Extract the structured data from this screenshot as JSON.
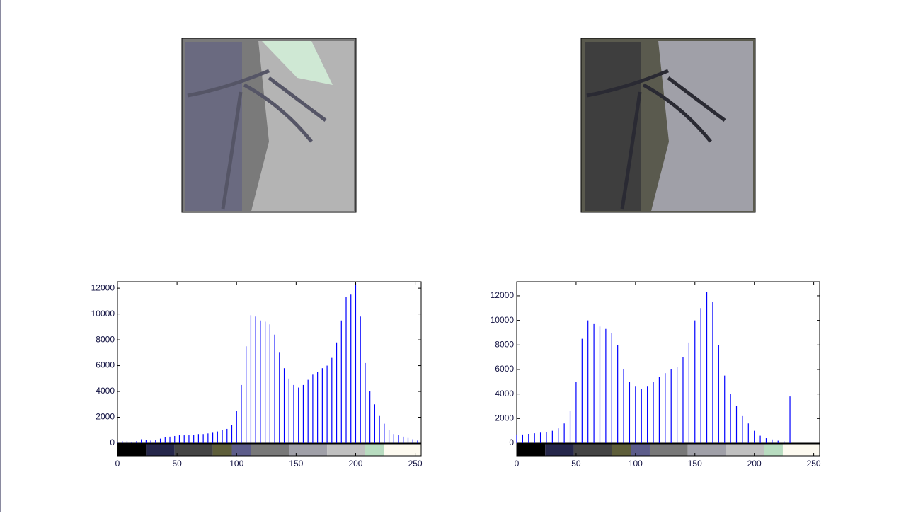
{
  "chart_data": [
    {
      "type": "histogram",
      "color": "#0000ff",
      "x": [
        0,
        4,
        8,
        12,
        16,
        20,
        24,
        28,
        32,
        36,
        40,
        44,
        48,
        52,
        56,
        60,
        64,
        68,
        72,
        76,
        80,
        84,
        88,
        92,
        96,
        100,
        104,
        108,
        112,
        116,
        120,
        124,
        128,
        132,
        136,
        140,
        144,
        148,
        152,
        156,
        160,
        164,
        168,
        172,
        176,
        180,
        184,
        188,
        192,
        196,
        200,
        204,
        208,
        212,
        216,
        220,
        224,
        228,
        232,
        236,
        240,
        244,
        248,
        252
      ],
      "values": [
        100,
        150,
        150,
        100,
        150,
        300,
        250,
        200,
        250,
        350,
        450,
        500,
        550,
        600,
        600,
        600,
        650,
        700,
        700,
        750,
        800,
        900,
        1000,
        1100,
        1400,
        2500,
        4500,
        7500,
        9900,
        9800,
        9500,
        9400,
        9200,
        8400,
        7000,
        5800,
        5000,
        4500,
        4300,
        4500,
        4900,
        5300,
        5500,
        5800,
        6000,
        6600,
        7800,
        9500,
        11300,
        11500,
        12400,
        9800,
        6200,
        4000,
        3000,
        2100,
        1500,
        1000,
        700,
        600,
        500,
        400,
        300,
        200
      ],
      "xlim": [
        0,
        255
      ],
      "ylim": [
        0,
        12500
      ],
      "xticks": [
        0,
        50,
        100,
        150,
        200,
        250
      ],
      "yticks": [
        0,
        2000,
        4000,
        6000,
        8000,
        10000,
        12000
      ],
      "colormap": {
        "edges": [
          0,
          24,
          48,
          80,
          96,
          112,
          144,
          176,
          208,
          224,
          255
        ],
        "colors": [
          "#000000",
          "#25264a",
          "#444444",
          "#5e5e3a",
          "#5c5c8a",
          "#787878",
          "#a0a0a8",
          "#c0c0c0",
          "#b8dcc0",
          "#fdfaf0"
        ]
      }
    },
    {
      "type": "histogram",
      "color": "#0000ff",
      "x": [
        0,
        5,
        10,
        15,
        20,
        25,
        30,
        35,
        40,
        45,
        50,
        55,
        60,
        65,
        70,
        75,
        80,
        85,
        90,
        95,
        100,
        105,
        110,
        115,
        120,
        125,
        130,
        135,
        140,
        145,
        150,
        155,
        160,
        165,
        170,
        175,
        180,
        185,
        190,
        195,
        200,
        205,
        210,
        215,
        220,
        225,
        230
      ],
      "values": [
        700,
        700,
        750,
        800,
        850,
        900,
        1000,
        1200,
        1600,
        2600,
        5000,
        8500,
        10000,
        9700,
        9500,
        9300,
        9000,
        8000,
        6000,
        5000,
        4600,
        4400,
        4600,
        5000,
        5400,
        5700,
        6000,
        6200,
        7000,
        8200,
        10000,
        11000,
        12300,
        11500,
        8000,
        5500,
        4000,
        3000,
        2200,
        1600,
        1000,
        600,
        400,
        300,
        200,
        150,
        3800
      ],
      "xlim": [
        0,
        255
      ],
      "ylim": [
        0,
        13150
      ],
      "xticks": [
        0,
        50,
        100,
        150,
        200,
        250
      ],
      "yticks": [
        0,
        2000,
        4000,
        6000,
        8000,
        10000,
        12000
      ],
      "colormap": {
        "edges": [
          0,
          24,
          48,
          80,
          96,
          112,
          144,
          176,
          208,
          224,
          255
        ],
        "colors": [
          "#000000",
          "#25264a",
          "#444444",
          "#5e5e3a",
          "#5c5c8a",
          "#787878",
          "#a0a0a8",
          "#c0c0c0",
          "#b8dcc0",
          "#fdfaf0"
        ]
      }
    }
  ]
}
